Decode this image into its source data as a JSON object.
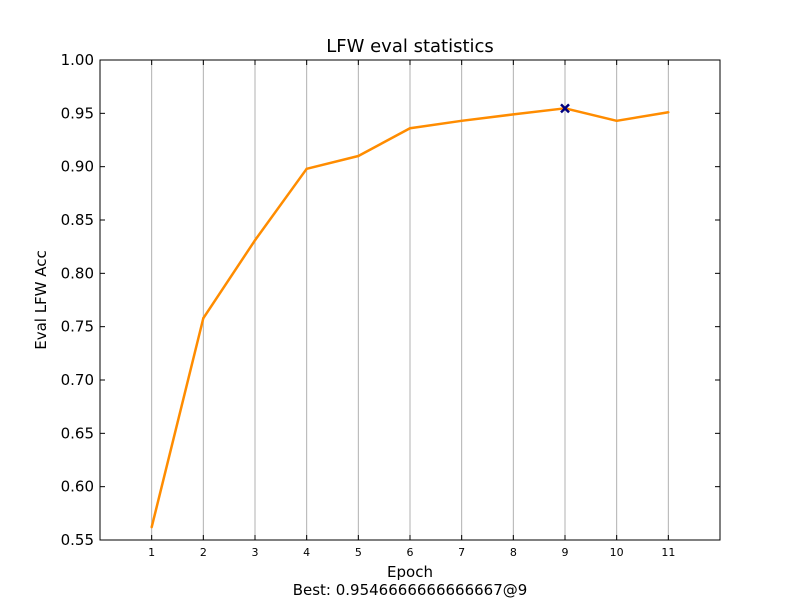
{
  "chart_data": {
    "type": "line",
    "title": "LFW eval statistics",
    "xlabel": "Epoch",
    "ylabel": "Eval LFW Acc",
    "x": [
      1,
      2,
      3,
      4,
      5,
      6,
      7,
      8,
      9,
      10,
      11
    ],
    "series": [
      {
        "values": [
          0.562,
          0.758,
          0.831,
          0.898,
          0.91,
          0.936,
          0.943,
          0.949,
          0.9547,
          0.943,
          0.951
        ],
        "color": "#ff8c00"
      }
    ],
    "best_point": {
      "x": 9,
      "y": 0.9546666666666667,
      "marker": "x",
      "color": "#000080"
    },
    "xlim": [
      0,
      12
    ],
    "ylim": [
      0.55,
      1.0
    ],
    "x_ticks": [
      "1",
      "2",
      "3",
      "4",
      "5",
      "6",
      "7",
      "8",
      "9",
      "10",
      "11"
    ],
    "y_ticks": [
      "0.55",
      "0.60",
      "0.65",
      "0.70",
      "0.75",
      "0.80",
      "0.85",
      "0.90",
      "0.95",
      "1.00"
    ],
    "grid": "vertical",
    "footer": "Best: 0.9546666666666667@9"
  }
}
